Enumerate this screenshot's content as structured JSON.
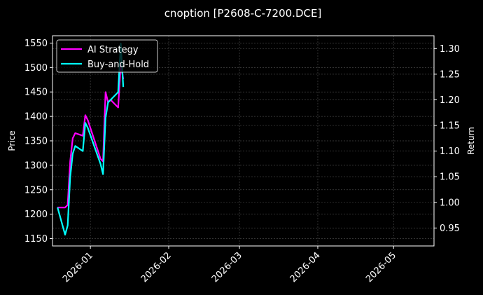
{
  "chart_data": {
    "type": "line",
    "title": "cnoption [P2608-C-7200.DCE]",
    "xlabel": "",
    "ylabel": "Price",
    "ylabel_right": "Return",
    "x_ticks": [
      "2026-01",
      "2026-02",
      "2026-03",
      "2026-04",
      "2026-05"
    ],
    "y_ticks_left": [
      1150,
      1200,
      1250,
      1300,
      1350,
      1400,
      1450,
      1500,
      1550
    ],
    "y_ticks_right": [
      "0.95",
      "1.00",
      "1.05",
      "1.10",
      "1.15",
      "1.20",
      "1.25",
      "1.30"
    ],
    "ylim_left": [
      1135,
      1565
    ],
    "ylim_right": [
      0.915,
      1.325
    ],
    "grid": true,
    "legend_position": "upper left",
    "background": "#000000",
    "series": [
      {
        "name": "AI Strategy",
        "color": "#ff00ff",
        "axis": "right",
        "x": [
          "2025-12-19",
          "2025-12-22",
          "2025-12-23",
          "2025-12-24",
          "2025-12-25",
          "2025-12-26",
          "2025-12-29",
          "2025-12-30",
          "2025-12-31",
          "2026-01-05",
          "2026-01-06",
          "2026-01-07",
          "2026-01-08",
          "2026-01-09",
          "2026-01-12",
          "2026-01-13",
          "2026-01-14"
        ],
        "values": [
          0.99,
          0.99,
          0.995,
          1.08,
          1.125,
          1.135,
          1.13,
          1.17,
          1.16,
          1.085,
          1.08,
          1.215,
          1.195,
          1.2,
          1.185,
          1.27,
          1.24
        ]
      },
      {
        "name": "Buy-and-Hold",
        "color": "#00ffff",
        "axis": "right",
        "x": [
          "2025-12-19",
          "2025-12-22",
          "2025-12-23",
          "2025-12-24",
          "2025-12-25",
          "2025-12-26",
          "2025-12-29",
          "2025-12-30",
          "2025-12-31",
          "2026-01-05",
          "2026-01-06",
          "2026-01-07",
          "2026-01-08",
          "2026-01-09",
          "2026-01-12",
          "2026-01-13",
          "2026-01-14"
        ],
        "values": [
          0.99,
          0.937,
          0.955,
          1.05,
          1.095,
          1.11,
          1.1,
          1.155,
          1.145,
          1.075,
          1.055,
          1.165,
          1.195,
          1.2,
          1.215,
          1.31,
          1.225
        ]
      }
    ]
  },
  "legend": {
    "items": [
      {
        "label": "AI Strategy",
        "color": "#ff00ff"
      },
      {
        "label": "Buy-and-Hold",
        "color": "#00ffff"
      }
    ]
  }
}
